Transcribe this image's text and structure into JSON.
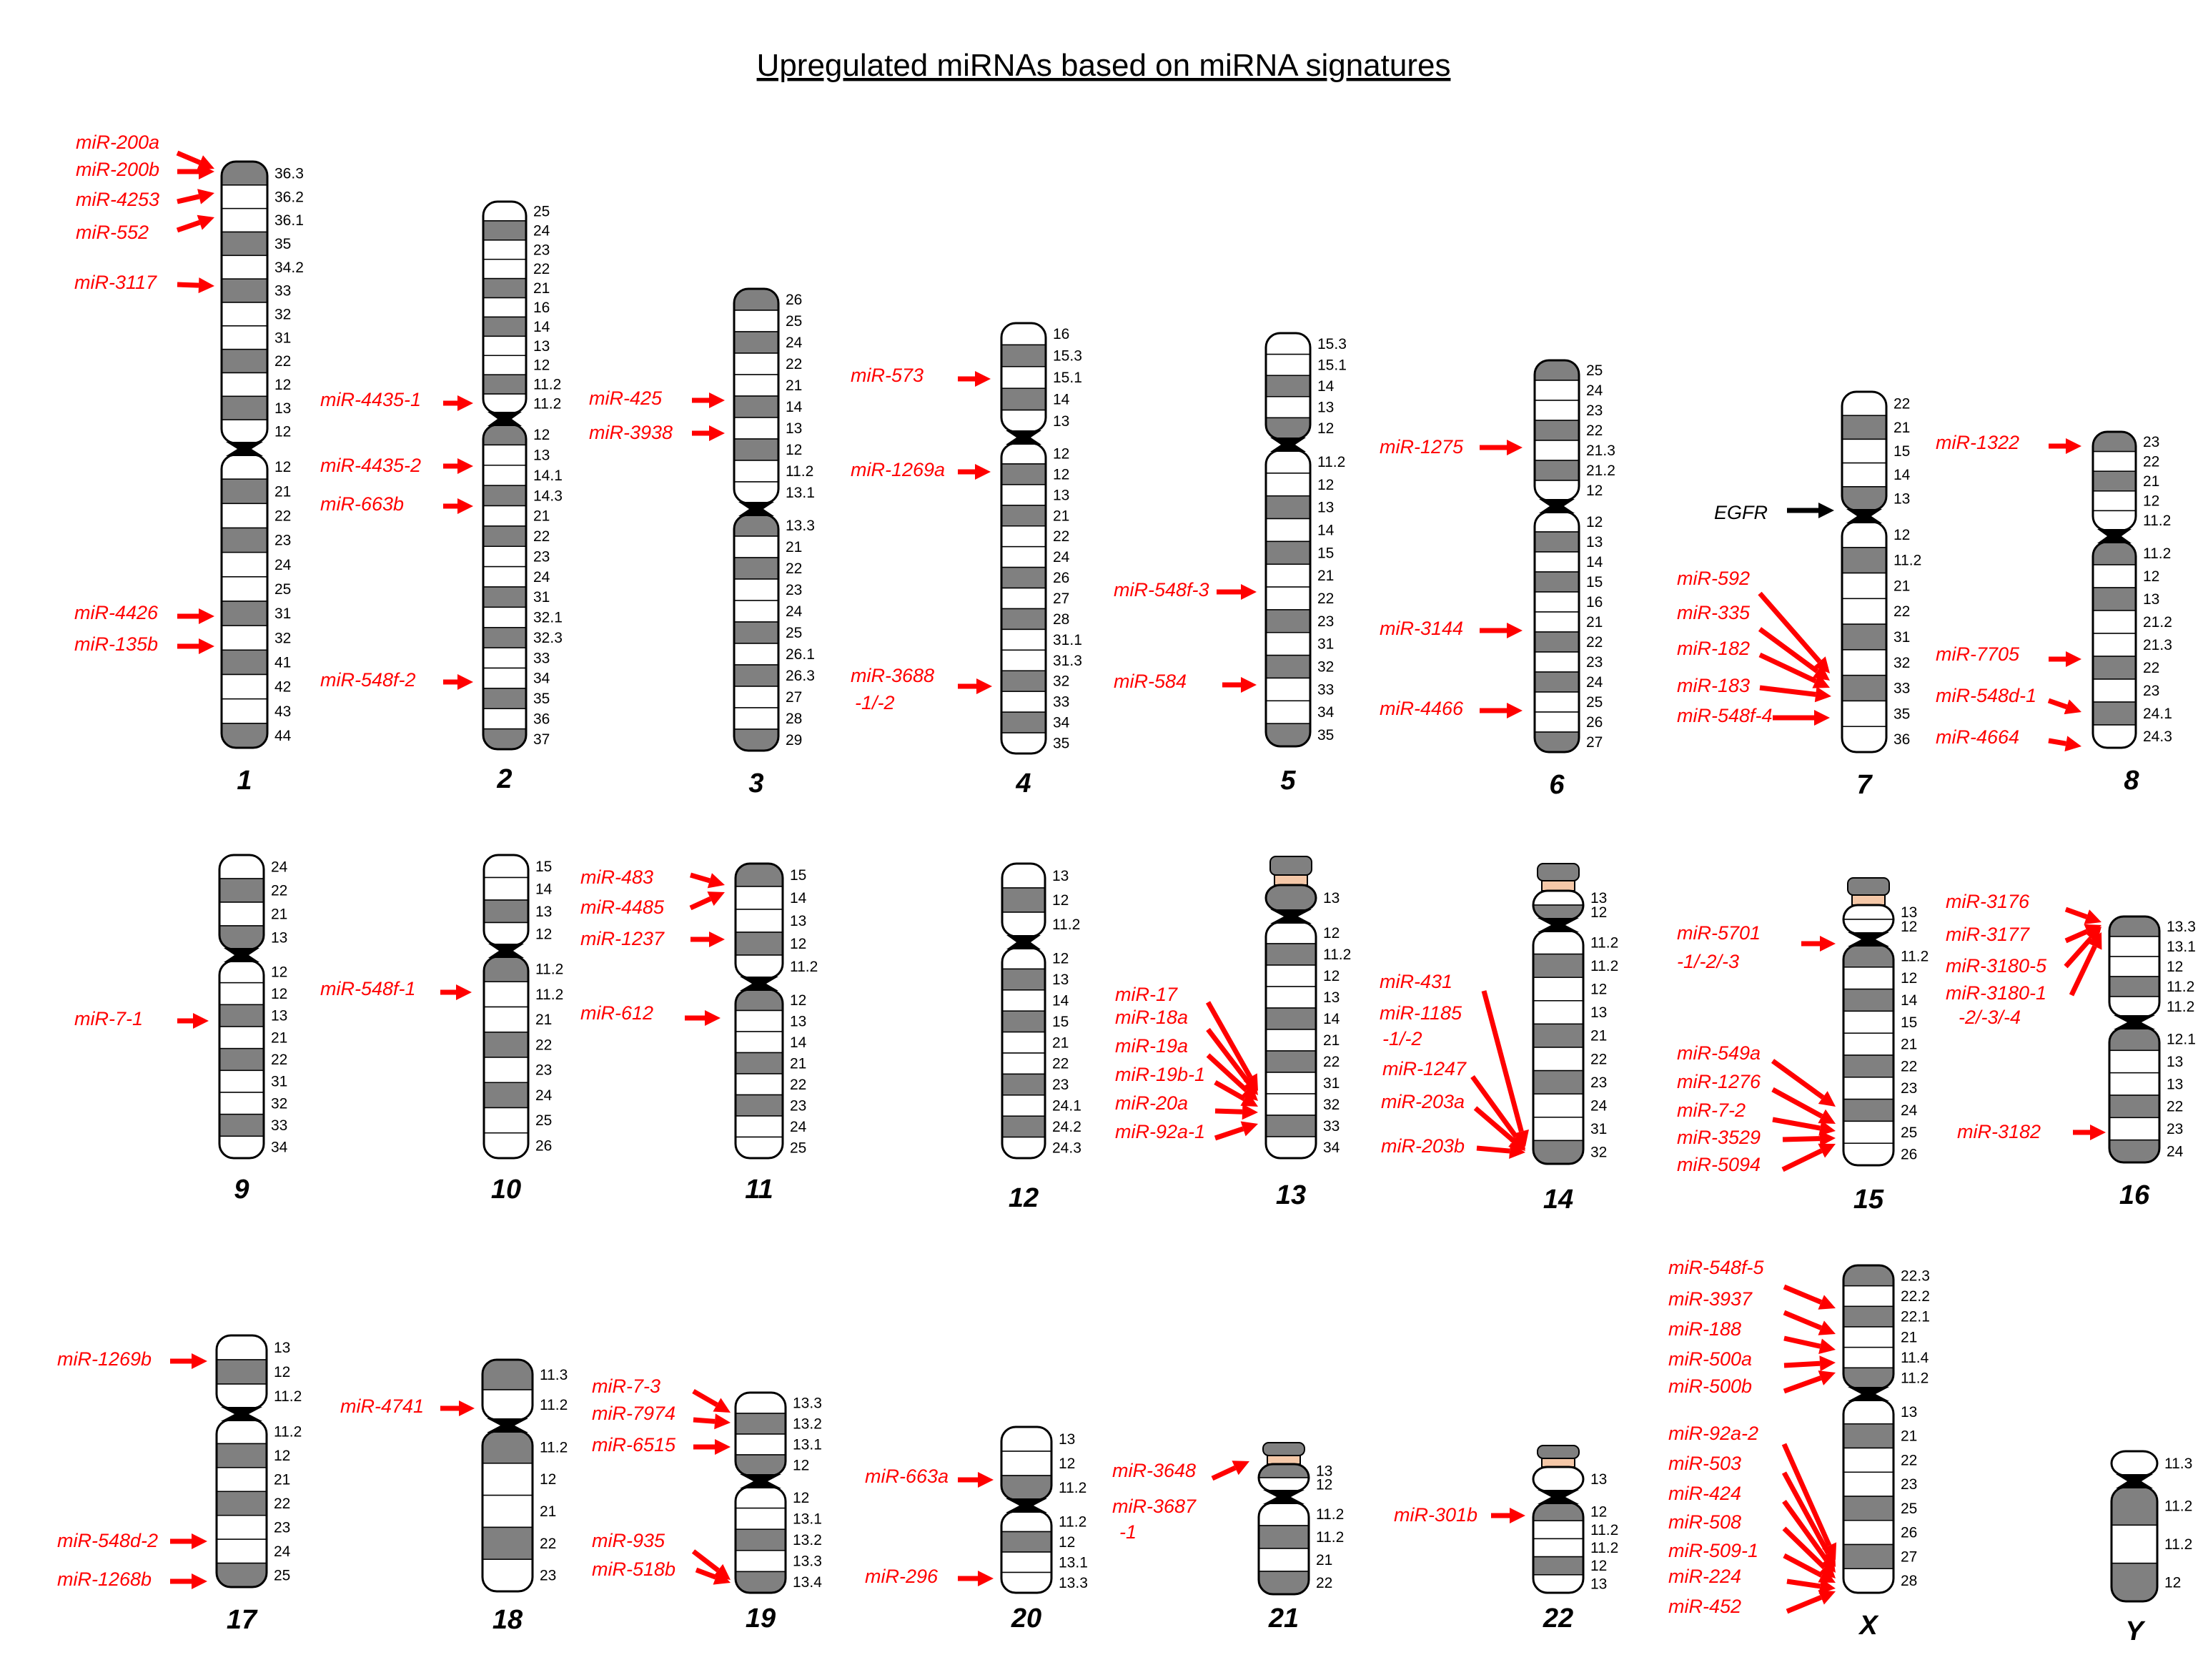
{
  "title": "Upregulated miRNAs based on miRNA signatures",
  "colors": {
    "mirna": "#ff0000",
    "gene": "#000000",
    "dark_band": "#808080",
    "light_band": "#ffffff",
    "stalk": "#f5c8a8",
    "centromere": "#000000"
  },
  "chromosomes": [
    {
      "name": "1",
      "bands": [
        "36.3",
        "36.2",
        "36.1",
        "35",
        "34.2",
        "33",
        "32",
        "31",
        "22",
        "12",
        "13",
        "12",
        "12",
        "21",
        "22",
        "23",
        "24",
        "25",
        "31",
        "32",
        "41",
        "42",
        "43",
        "44"
      ],
      "labels": [
        "miR-200a",
        "miR-200b",
        "miR-4253",
        "miR-552",
        "miR-3117",
        "miR-4426",
        "miR-135b"
      ]
    },
    {
      "name": "2",
      "bands": [
        "25",
        "24",
        "23",
        "22",
        "21",
        "16",
        "14",
        "13",
        "12",
        "11.2",
        "11.2",
        "12",
        "13",
        "14.1",
        "14.3",
        "21",
        "22",
        "23",
        "24",
        "31",
        "32.1",
        "32.3",
        "33",
        "34",
        "35",
        "36",
        "37"
      ],
      "labels": [
        "miR-4435-1",
        "miR-4435-2",
        "miR-663b",
        "miR-548f-2"
      ]
    },
    {
      "name": "3",
      "bands": [
        "26",
        "25",
        "24",
        "22",
        "21",
        "14",
        "13",
        "12",
        "11.2",
        "13.1",
        "13.3",
        "21",
        "22",
        "23",
        "24",
        "25",
        "26.1",
        "26.3",
        "27",
        "28",
        "29"
      ],
      "labels": [
        "miR-425",
        "miR-3938"
      ]
    },
    {
      "name": "4",
      "bands": [
        "16",
        "15.3",
        "15.1",
        "14",
        "13",
        "12",
        "12",
        "13",
        "21",
        "22",
        "24",
        "26",
        "27",
        "28",
        "31.1",
        "31.3",
        "32",
        "33",
        "34",
        "35"
      ],
      "labels": [
        "miR-573",
        "miR-1269a",
        "miR-3688",
        "-1/-2"
      ]
    },
    {
      "name": "5",
      "bands": [
        "15.3",
        "15.1",
        "14",
        "13",
        "12",
        "11.2",
        "12",
        "13",
        "14",
        "15",
        "21",
        "22",
        "23",
        "31",
        "32",
        "33",
        "34",
        "35"
      ],
      "labels": [
        "miR-548f-3",
        "miR-584"
      ]
    },
    {
      "name": "6",
      "bands": [
        "25",
        "24",
        "23",
        "22",
        "21.3",
        "21.2",
        "12",
        "12",
        "13",
        "14",
        "15",
        "16",
        "21",
        "22",
        "23",
        "24",
        "25",
        "26",
        "27"
      ],
      "labels": [
        "miR-1275",
        "miR-3144",
        "miR-4466"
      ]
    },
    {
      "name": "7",
      "bands": [
        "22",
        "21",
        "15",
        "14",
        "13",
        "12",
        "11.2",
        "21",
        "22",
        "31",
        "32",
        "33",
        "35",
        "36"
      ],
      "labels": [
        "miR-592",
        "miR-335",
        "miR-182",
        "miR-183",
        "miR-548f-4"
      ],
      "gene": "EGFR"
    },
    {
      "name": "8",
      "bands": [
        "23",
        "22",
        "21",
        "12",
        "11.2",
        "11.2",
        "12",
        "13",
        "21.2",
        "21.3",
        "22",
        "23",
        "24.1",
        "24.3"
      ],
      "labels": [
        "miR-1322",
        "miR-7705",
        "miR-548d-1",
        "miR-4664"
      ]
    },
    {
      "name": "9",
      "bands": [
        "24",
        "22",
        "21",
        "13",
        "12",
        "12",
        "13",
        "21",
        "22",
        "31",
        "32",
        "33",
        "34"
      ],
      "labels": [
        "miR-7-1"
      ]
    },
    {
      "name": "10",
      "bands": [
        "15",
        "14",
        "13",
        "12",
        "11.2",
        "11.2",
        "21",
        "22",
        "23",
        "24",
        "25",
        "26"
      ],
      "labels": [
        "miR-548f-1"
      ]
    },
    {
      "name": "11",
      "bands": [
        "15",
        "14",
        "13",
        "12",
        "11.2",
        "12",
        "13",
        "14",
        "21",
        "22",
        "23",
        "24",
        "25"
      ],
      "labels": [
        "miR-483",
        "miR-4485",
        "miR-1237",
        "miR-612"
      ]
    },
    {
      "name": "12",
      "bands": [
        "13",
        "12",
        "11.2",
        "12",
        "13",
        "14",
        "15",
        "21",
        "22",
        "23",
        "24.1",
        "24.2",
        "24.3"
      ],
      "labels": []
    },
    {
      "name": "13",
      "bands": [
        "13",
        "12",
        "11.2",
        "12",
        "13",
        "14",
        "21",
        "22",
        "31",
        "32",
        "33",
        "34"
      ],
      "labels": [
        "miR-17",
        "miR-18a",
        "miR-19a",
        "miR-19b-1",
        "miR-20a",
        "miR-92a-1"
      ]
    },
    {
      "name": "14",
      "bands": [
        "13",
        "12",
        "11.2",
        "11.2",
        "12",
        "13",
        "21",
        "22",
        "23",
        "24",
        "31",
        "32"
      ],
      "labels": [
        "miR-431",
        "miR-1185",
        "-1/-2",
        "miR-1247",
        "miR-203a",
        "miR-203b"
      ]
    },
    {
      "name": "15",
      "bands": [
        "13",
        "12",
        "11.2",
        "12",
        "14",
        "15",
        "21",
        "22",
        "23",
        "24",
        "25",
        "26"
      ],
      "labels": [
        "miR-5701",
        "-1/-2/-3",
        "miR-549a",
        "miR-1276",
        "miR-7-2",
        "miR-3529",
        "miR-5094"
      ]
    },
    {
      "name": "16",
      "bands": [
        "13.3",
        "13.1",
        "12",
        "11.2",
        "11.2",
        "12.1",
        "13",
        "13",
        "22",
        "23",
        "24"
      ],
      "labels": [
        "miR-3176",
        "miR-3177",
        "miR-3180-5",
        "miR-3180-1",
        "-2/-3/-4",
        "miR-3182"
      ]
    },
    {
      "name": "17",
      "bands": [
        "13",
        "12",
        "11.2",
        "11.2",
        "12",
        "21",
        "22",
        "23",
        "24",
        "25"
      ],
      "labels": [
        "miR-1269b",
        "miR-548d-2",
        "miR-1268b"
      ]
    },
    {
      "name": "18",
      "bands": [
        "11.3",
        "11.2",
        "11.2",
        "12",
        "21",
        "22",
        "23"
      ],
      "labels": [
        "miR-4741"
      ]
    },
    {
      "name": "19",
      "bands": [
        "13.3",
        "13.2",
        "13.1",
        "12",
        "12",
        "13.1",
        "13.2",
        "13.3",
        "13.4"
      ],
      "labels": [
        "miR-7-3",
        "miR-7974",
        "miR-6515",
        "miR-935",
        "miR-518b"
      ]
    },
    {
      "name": "20",
      "bands": [
        "13",
        "12",
        "11.2",
        "11.2",
        "12",
        "13.1",
        "13.3"
      ],
      "labels": [
        "miR-663a",
        "miR-296"
      ]
    },
    {
      "name": "21",
      "bands": [
        "13",
        "12",
        "11.2",
        "11.2",
        "21",
        "22"
      ],
      "labels": [
        "miR-3648",
        "miR-3687",
        "-1"
      ]
    },
    {
      "name": "22",
      "bands": [
        "13",
        "12",
        "11.2",
        "11.2",
        "12",
        "13"
      ],
      "labels": [
        "miR-301b"
      ]
    },
    {
      "name": "X",
      "bands": [
        "22.3",
        "22.2",
        "22.1",
        "21",
        "11.4",
        "11.2",
        "13",
        "21",
        "22",
        "23",
        "25",
        "26",
        "27",
        "28"
      ],
      "labels": [
        "miR-548f-5",
        "miR-3937",
        "miR-188",
        "miR-500a",
        "miR-500b",
        "miR-92a-2",
        "miR-503",
        "miR-424",
        "miR-508",
        "miR-509-1",
        "miR-224",
        "miR-452"
      ]
    },
    {
      "name": "Y",
      "bands": [
        "11.3",
        "11.2",
        "11.2",
        "12"
      ],
      "labels": []
    }
  ]
}
